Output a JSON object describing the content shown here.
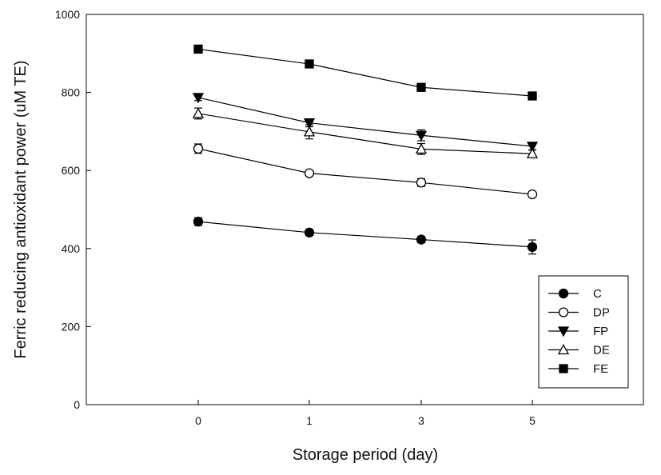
{
  "chart_data": {
    "type": "line",
    "title": "",
    "xlabel": "Storage period (day)",
    "ylabel": "Ferric reducing antioxidant power (uM TE)",
    "categories": [
      "0",
      "1",
      "3",
      "5"
    ],
    "ylim": [
      0,
      1000
    ],
    "yticks": [
      "0",
      "200",
      "400",
      "600",
      "800",
      "1000"
    ],
    "grid": false,
    "legend_position": "bottom-right",
    "series": [
      {
        "name": "C",
        "marker": "circle-filled",
        "values": [
          469,
          441,
          423,
          404
        ],
        "errors": [
          10,
          8,
          8,
          18
        ]
      },
      {
        "name": "DP",
        "marker": "circle-open",
        "values": [
          656,
          593,
          569,
          539
        ],
        "errors": [
          12,
          6,
          10,
          6
        ]
      },
      {
        "name": "FP",
        "marker": "triangle-down-filled",
        "values": [
          787,
          722,
          690,
          662
        ],
        "errors": [
          8,
          10,
          14,
          10
        ]
      },
      {
        "name": "DE",
        "marker": "triangle-up-open",
        "values": [
          746,
          699,
          655,
          643
        ],
        "errors": [
          14,
          18,
          14,
          10
        ]
      },
      {
        "name": "FE",
        "marker": "square-filled",
        "values": [
          911,
          873,
          813,
          791
        ],
        "errors": [
          10,
          10,
          8,
          6
        ]
      }
    ]
  }
}
